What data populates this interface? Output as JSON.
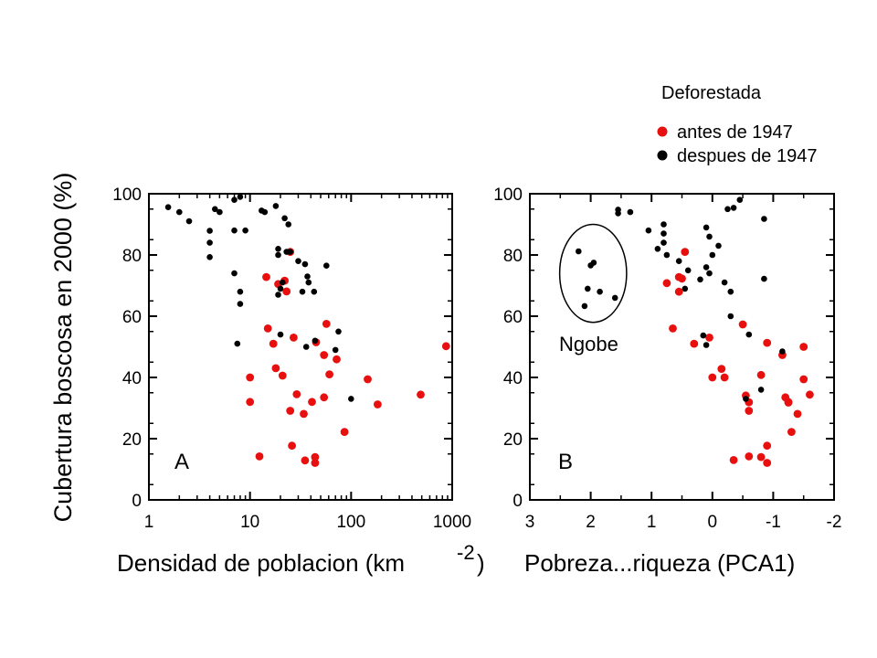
{
  "figure": {
    "ylabel": "Cubertura boscosa en 2000 (%)",
    "legend": {
      "title": "Deforestada",
      "entries": [
        {
          "label": "antes de 1947",
          "color": "#e8100f"
        },
        {
          "label": "despues de 1947",
          "color": "#000000"
        }
      ]
    }
  },
  "chart_data": [
    {
      "type": "scatter",
      "panel_label": "A",
      "xlabel": "Densidad de poblacion (km",
      "xlabel_sup": "-2",
      "xlabel_close": ")",
      "xscale": "log",
      "xlim": [
        1,
        1000
      ],
      "ylim": [
        0,
        100
      ],
      "xticks": [
        1,
        10,
        100,
        1000
      ],
      "xtick_labels": [
        "1",
        "10",
        "100",
        "1000"
      ],
      "yticks": [
        0,
        20,
        40,
        60,
        80,
        100
      ],
      "ytick_labels": [
        "0",
        "20",
        "40",
        "60",
        "80",
        "100"
      ],
      "grid": false,
      "series": [
        {
          "color": "#e8100f",
          "points": [
            [
              14.5,
              72.8
            ],
            [
              19,
              70.5
            ],
            [
              22,
              71.6
            ],
            [
              23,
              68.1
            ],
            [
              25,
              81
            ],
            [
              15,
              56
            ],
            [
              17,
              51
            ],
            [
              27,
              53
            ],
            [
              57,
              57.5
            ],
            [
              18,
              43
            ],
            [
              21,
              40.6
            ],
            [
              10,
              40
            ],
            [
              10,
              32
            ],
            [
              54,
              47.3
            ],
            [
              72,
              45.9
            ],
            [
              45,
              51.5
            ],
            [
              61,
              41
            ],
            [
              29,
              34.5
            ],
            [
              25,
              29.1
            ],
            [
              34,
              28.1
            ],
            [
              41,
              32
            ],
            [
              54,
              33.5
            ],
            [
              146,
              39.4
            ],
            [
              183,
              31.2
            ],
            [
              488,
              34.4
            ],
            [
              870,
              50.2
            ],
            [
              86,
              22.2
            ],
            [
              12.4,
              14.2
            ],
            [
              26,
              17.7
            ],
            [
              35,
              12.9
            ],
            [
              44,
              14
            ],
            [
              44,
              12.1
            ]
          ]
        },
        {
          "color": "#000000",
          "points": [
            [
              1.55,
              95.6
            ],
            [
              2,
              94
            ],
            [
              2.5,
              91
            ],
            [
              4,
              87.9
            ],
            [
              4,
              84
            ],
            [
              4,
              79.3
            ],
            [
              4.5,
              95
            ],
            [
              5,
              94
            ],
            [
              7,
              98
            ],
            [
              8,
              99
            ],
            [
              9,
              88
            ],
            [
              7,
              88
            ],
            [
              7,
              74
            ],
            [
              8,
              68
            ],
            [
              8,
              64
            ],
            [
              7.5,
              51
            ],
            [
              13,
              94.5
            ],
            [
              14,
              94
            ],
            [
              18,
              96
            ],
            [
              22,
              92
            ],
            [
              24,
              90
            ],
            [
              19,
              82
            ],
            [
              19,
              80
            ],
            [
              23,
              81
            ],
            [
              25,
              81
            ],
            [
              21,
              71
            ],
            [
              20,
              69
            ],
            [
              19,
              67
            ],
            [
              30,
              78
            ],
            [
              35,
              77
            ],
            [
              37,
              73
            ],
            [
              38,
              71
            ],
            [
              33,
              68
            ],
            [
              43,
              68
            ],
            [
              57,
              76.5
            ],
            [
              20,
              54
            ],
            [
              36,
              50
            ],
            [
              44,
              52
            ],
            [
              75,
              55
            ],
            [
              70,
              49
            ],
            [
              100,
              33
            ]
          ]
        }
      ]
    },
    {
      "type": "scatter",
      "panel_label": "B",
      "xlabel": "Pobreza...riqueza (PCA1)",
      "xscale": "linear",
      "xlim": [
        3,
        -2
      ],
      "ylim": [
        0,
        100
      ],
      "xticks": [
        3,
        2,
        1,
        0,
        -1,
        -2
      ],
      "xtick_labels": [
        "3",
        "2",
        "1",
        "0",
        "-1",
        "-2"
      ],
      "yticks": [
        0,
        20,
        40,
        60,
        80,
        100
      ],
      "ytick_labels": [
        "0",
        "20",
        "40",
        "60",
        "80",
        "100"
      ],
      "grid": false,
      "annotation": {
        "label": "Ngobe",
        "center": [
          1.96,
          74
        ],
        "radius": [
          0.55,
          16
        ]
      },
      "series": [
        {
          "color": "#e8100f",
          "points": [
            [
              0.45,
              81
            ],
            [
              0.55,
              72.8
            ],
            [
              0.5,
              72.3
            ],
            [
              0.75,
              70.8
            ],
            [
              0.55,
              68
            ],
            [
              0.65,
              56
            ],
            [
              0.3,
              51
            ],
            [
              0.05,
              53
            ],
            [
              -0.5,
              57.3
            ],
            [
              0,
              40
            ],
            [
              -0.15,
              42.8
            ],
            [
              -0.2,
              40
            ],
            [
              -0.8,
              40.8
            ],
            [
              -0.9,
              51.3
            ],
            [
              -1.15,
              47.3
            ],
            [
              -1.5,
              50
            ],
            [
              -1.5,
              39.4
            ],
            [
              -1.6,
              34.4
            ],
            [
              -0.55,
              34.1
            ],
            [
              -0.6,
              31.9
            ],
            [
              -0.6,
              29.1
            ],
            [
              -1.2,
              33.5
            ],
            [
              -1.25,
              31.8
            ],
            [
              -1.25,
              32
            ],
            [
              -1.4,
              28.1
            ],
            [
              -1.3,
              22.2
            ],
            [
              -0.9,
              17.7
            ],
            [
              -0.6,
              14.2
            ],
            [
              -0.8,
              14
            ],
            [
              -0.9,
              12.1
            ],
            [
              -0.35,
              13
            ]
          ]
        },
        {
          "color": "#000000",
          "points": [
            [
              2.2,
              81.2
            ],
            [
              2,
              76.6
            ],
            [
              1.95,
              77.5
            ],
            [
              2.05,
              69
            ],
            [
              1.85,
              68
            ],
            [
              2.1,
              63.3
            ],
            [
              1.6,
              66
            ],
            [
              1.55,
              94.8
            ],
            [
              1.55,
              93.6
            ],
            [
              1.35,
              94
            ],
            [
              1.05,
              88
            ],
            [
              0.8,
              90
            ],
            [
              0.8,
              87
            ],
            [
              0.8,
              84
            ],
            [
              0.9,
              82
            ],
            [
              0.75,
              80
            ],
            [
              0.55,
              78
            ],
            [
              0.4,
              75
            ],
            [
              0.2,
              72
            ],
            [
              0.45,
              69
            ],
            [
              0.1,
              89
            ],
            [
              0.05,
              86
            ],
            [
              -0.1,
              83
            ],
            [
              0,
              80
            ],
            [
              0.1,
              76
            ],
            [
              0.05,
              74
            ],
            [
              -0.2,
              71
            ],
            [
              -0.3,
              68
            ],
            [
              -0.25,
              95
            ],
            [
              -0.35,
              95.4
            ],
            [
              -0.45,
              98
            ],
            [
              -0.85,
              91.8
            ],
            [
              -0.85,
              72.2
            ],
            [
              0.1,
              50.6
            ],
            [
              0.15,
              53.7
            ],
            [
              -0.3,
              60
            ],
            [
              -0.6,
              54
            ],
            [
              -0.55,
              33
            ],
            [
              -0.8,
              36
            ],
            [
              -1.15,
              48.5
            ]
          ]
        }
      ]
    }
  ]
}
